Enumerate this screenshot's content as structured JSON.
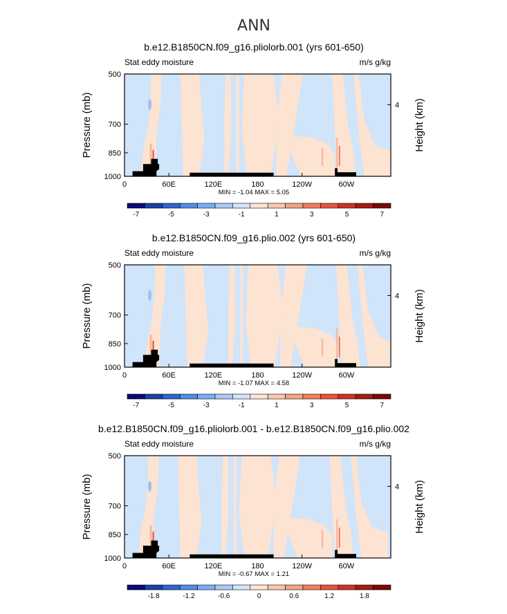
{
  "figure": {
    "title": "ANN"
  },
  "colors": {
    "light_blue": "#d0e4fa",
    "light_peach": "#fde3d2",
    "salmon": "#f7b89f",
    "red": "#e8604a",
    "land": "#000000"
  },
  "chart_data": [
    {
      "type": "heatmap",
      "title": "b.e12.B1850CN.f09_g16.pliolorb.001 (yrs 601-650)",
      "left_label": "Stat eddy moisture",
      "right_label": "m/s g/kg",
      "ylabel": "Pressure (mb)",
      "ylabel_right": "Height (km)",
      "xticks": [
        "0",
        "60E",
        "120E",
        "180",
        "120W",
        "60W"
      ],
      "xlim": [
        0,
        360
      ],
      "yticks": [
        "500",
        "700",
        "850",
        "1000"
      ],
      "ylim": [
        1000,
        500
      ],
      "yticks_right": [
        "4"
      ],
      "stats": "MIN =   -1.04   MAX =    5.05",
      "colorbar": {
        "labels": [
          "-7",
          "-5",
          "-3",
          "-1",
          "1",
          "3",
          "5",
          "7"
        ],
        "colors": [
          "#0a0a78",
          "#1b3fa8",
          "#2d64d6",
          "#4f8ce8",
          "#7aaef2",
          "#a7c9f6",
          "#d0e4fa",
          "#fde3d2",
          "#f7c7ad",
          "#f3a383",
          "#ef7f5e",
          "#e8553c",
          "#cc3322",
          "#a61b14",
          "#780a0a"
        ]
      }
    },
    {
      "type": "heatmap",
      "title": "b.e12.B1850CN.f09_g16.plio.002 (yrs 601-650)",
      "left_label": "Stat eddy moisture",
      "right_label": "m/s g/kg",
      "ylabel": "Pressure (mb)",
      "ylabel_right": "Height (km)",
      "xticks": [
        "0",
        "60E",
        "120E",
        "180",
        "120W",
        "60W"
      ],
      "xlim": [
        0,
        360
      ],
      "yticks": [
        "500",
        "700",
        "850",
        "1000"
      ],
      "ylim": [
        1000,
        500
      ],
      "yticks_right": [
        "4"
      ],
      "stats": "MIN =   -1.07   MAX =    4.58",
      "colorbar": {
        "labels": [
          "-7",
          "-5",
          "-3",
          "-1",
          "1",
          "3",
          "5",
          "7"
        ],
        "colors": [
          "#0a0a78",
          "#1b3fa8",
          "#2d64d6",
          "#4f8ce8",
          "#7aaef2",
          "#a7c9f6",
          "#d0e4fa",
          "#fde3d2",
          "#f7c7ad",
          "#f3a383",
          "#ef7f5e",
          "#e8553c",
          "#cc3322",
          "#a61b14",
          "#780a0a"
        ]
      }
    },
    {
      "type": "heatmap",
      "title": "b.e12.B1850CN.f09_g16.pliolorb.001 - b.e12.B1850CN.f09_g16.plio.002",
      "left_label": "Stat eddy moisture",
      "right_label": "m/s g/kg",
      "ylabel": "Pressure (mb)",
      "ylabel_right": "Height (km)",
      "xticks": [
        "0",
        "60E",
        "120E",
        "180",
        "120W",
        "60W"
      ],
      "xlim": [
        0,
        360
      ],
      "yticks": [
        "500",
        "700",
        "850",
        "1000"
      ],
      "ylim": [
        1000,
        500
      ],
      "yticks_right": [
        "4"
      ],
      "stats": "MIN =   -0.67   MAX =    1.21",
      "colorbar": {
        "labels": [
          "-1.8",
          "-1.2",
          "-0.6",
          "0",
          "0.6",
          "1.2",
          "1.8"
        ],
        "colors": [
          "#0a0a78",
          "#1b3fa8",
          "#2d64d6",
          "#4f8ce8",
          "#7aaef2",
          "#a7c9f6",
          "#d0e4fa",
          "#fde3d2",
          "#f7c7ad",
          "#f3a383",
          "#ef7f5e",
          "#e8553c",
          "#cc3322",
          "#a61b14",
          "#780a0a"
        ]
      }
    }
  ]
}
